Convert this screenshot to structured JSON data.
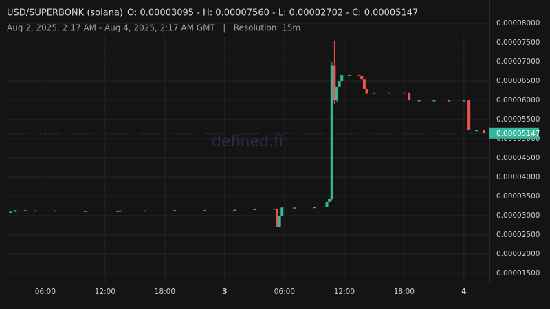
{
  "chart_data": {
    "type": "candlestick",
    "title": "USD/SUPERBONK (solana)",
    "ohlc": "O: 0.00003095 - H: 0.00007560 - L: 0.00002702 - C: 0.00005147",
    "subtitle": "Aug 2, 2025, 2:17 AM - Aug 4, 2025, 2:17 AM GMT   |   Resolution: 15m",
    "watermark": "defined.fi",
    "up_color": "#35b89a",
    "down_color": "#ef5350",
    "grid": true,
    "xlim": [
      "2025-08-02T02:17",
      "2025-08-04T02:17"
    ],
    "xticks": [
      {
        "value": "2025-08-02T06:00",
        "label": "06:00"
      },
      {
        "value": "2025-08-02T12:00",
        "label": "12:00"
      },
      {
        "value": "2025-08-02T18:00",
        "label": "18:00"
      },
      {
        "value": "2025-08-03T00:00",
        "label": "3"
      },
      {
        "value": "2025-08-03T06:00",
        "label": "06:00"
      },
      {
        "value": "2025-08-03T12:00",
        "label": "12:00"
      },
      {
        "value": "2025-08-03T18:00",
        "label": "18:00"
      },
      {
        "value": "2025-08-04T00:00",
        "label": "4"
      }
    ],
    "ylim": [
      1.25e-05,
      8.43e-05
    ],
    "yticks": [
      {
        "value": 1.5e-05,
        "label": "0.00001500"
      },
      {
        "value": 2e-05,
        "label": "0.00002000"
      },
      {
        "value": 2.5e-05,
        "label": "0.00002500"
      },
      {
        "value": 3e-05,
        "label": "0.00003000"
      },
      {
        "value": 3.5e-05,
        "label": "0.00003500"
      },
      {
        "value": 4e-05,
        "label": "0.00004000"
      },
      {
        "value": 4.5e-05,
        "label": "0.00004500"
      },
      {
        "value": 5e-05,
        "label": "0.00005000"
      },
      {
        "value": 5.5e-05,
        "label": "0.00005500"
      },
      {
        "value": 6e-05,
        "label": "0.00006000"
      },
      {
        "value": 6.5e-05,
        "label": "0.00006500"
      },
      {
        "value": 7e-05,
        "label": "0.00007000"
      },
      {
        "value": 7.5e-05,
        "label": "0.00007500"
      },
      {
        "value": 8e-05,
        "label": "0.00008000"
      }
    ],
    "last_price": {
      "value": 5.147e-05,
      "label": "0.00005147"
    },
    "x": [
      "2025-08-02T02:30",
      "2025-08-02T03:00",
      "2025-08-02T04:00",
      "2025-08-02T05:00",
      "2025-08-02T07:00",
      "2025-08-02T10:00",
      "2025-08-02T13:15",
      "2025-08-02T13:30",
      "2025-08-02T16:00",
      "2025-08-02T19:00",
      "2025-08-02T22:00",
      "2025-08-03T01:00",
      "2025-08-03T03:00",
      "2025-08-03T05:00",
      "2025-08-03T05:15",
      "2025-08-03T05:30",
      "2025-08-03T05:45",
      "2025-08-03T07:00",
      "2025-08-03T09:00",
      "2025-08-03T10:15",
      "2025-08-03T10:30",
      "2025-08-03T10:45",
      "2025-08-03T11:00",
      "2025-08-03T11:15",
      "2025-08-03T11:30",
      "2025-08-03T11:45",
      "2025-08-03T12:30",
      "2025-08-03T13:30",
      "2025-08-03T13:45",
      "2025-08-03T14:00",
      "2025-08-03T14:15",
      "2025-08-03T15:00",
      "2025-08-03T16:30",
      "2025-08-03T18:00",
      "2025-08-03T18:30",
      "2025-08-03T19:30",
      "2025-08-03T21:00",
      "2025-08-03T22:30",
      "2025-08-04T00:00",
      "2025-08-04T00:30",
      "2025-08-04T01:15",
      "2025-08-04T02:00"
    ],
    "open": [
      3.095e-05,
      3.1e-05,
      3.14e-05,
      3.13e-05,
      3.13e-05,
      3.12e-05,
      3.12e-05,
      3.1e-05,
      3.13e-05,
      3.13e-05,
      3.14e-05,
      3.15e-05,
      3.16e-05,
      3.17e-05,
      3.18e-05,
      2.71e-05,
      3e-05,
      3.21e-05,
      3.22e-05,
      3.22e-05,
      3.36e-05,
      3.43e-05,
      6.9e-05,
      6e-05,
      6.36e-05,
      6.5e-05,
      6.66e-05,
      6.66e-05,
      6.64e-05,
      6.55e-05,
      6.3e-05,
      6.17e-05,
      6.2e-05,
      6.2e-05,
      6.2e-05,
      6e-05,
      6e-05,
      6e-05,
      6e-05,
      6e-05,
      5.22e-05,
      5.22e-05
    ],
    "high": [
      3.1e-05,
      3.14e-05,
      3.14e-05,
      3.13e-05,
      3.13e-05,
      3.12e-05,
      3.12e-05,
      3.13e-05,
      3.13e-05,
      3.14e-05,
      3.14e-05,
      3.15e-05,
      3.17e-05,
      3.18e-05,
      3.18e-05,
      3e-05,
      3.21e-05,
      3.21e-05,
      3.22e-05,
      3.36e-05,
      3.43e-05,
      7e-05,
      7.56e-05,
      6.36e-05,
      6.5e-05,
      6.66e-05,
      6.66e-05,
      6.66e-05,
      6.64e-05,
      6.55e-05,
      6.3e-05,
      6.2e-05,
      6.2e-05,
      6.2e-05,
      6.2e-05,
      6e-05,
      6e-05,
      6e-05,
      6e-05,
      6e-05,
      5.22e-05,
      5.22e-05
    ],
    "low": [
      3.08e-05,
      3.1e-05,
      3.12e-05,
      3.13e-05,
      3.12e-05,
      3.12e-05,
      3.1e-05,
      3.1e-05,
      3.13e-05,
      3.13e-05,
      3.14e-05,
      3.15e-05,
      3.16e-05,
      3.17e-05,
      2.7e-05,
      2.71e-05,
      3e-05,
      3.21e-05,
      3.22e-05,
      3.22e-05,
      3.36e-05,
      3.4e-05,
      5.9e-05,
      5.95e-05,
      6.36e-05,
      6.5e-05,
      6.66e-05,
      6.64e-05,
      6.55e-05,
      6.3e-05,
      6.17e-05,
      6.17e-05,
      6.2e-05,
      6.2e-05,
      6e-05,
      6e-05,
      6e-05,
      6e-05,
      6e-05,
      5.22e-05,
      5.22e-05,
      5.14e-05
    ],
    "close": [
      3.1e-05,
      3.14e-05,
      3.13e-05,
      3.13e-05,
      3.12e-05,
      3.12e-05,
      3.1e-05,
      3.13e-05,
      3.13e-05,
      3.14e-05,
      3.14e-05,
      3.15e-05,
      3.17e-05,
      3.18e-05,
      2.71e-05,
      3e-05,
      3.21e-05,
      3.21e-05,
      3.22e-05,
      3.36e-05,
      3.43e-05,
      6.9e-05,
      6e-05,
      6.36e-05,
      6.5e-05,
      6.66e-05,
      6.66e-05,
      6.64e-05,
      6.55e-05,
      6.3e-05,
      6.17e-05,
      6.2e-05,
      6.2e-05,
      6.2e-05,
      6e-05,
      6e-05,
      6e-05,
      6e-05,
      6e-05,
      5.22e-05,
      5.22e-05,
      5.147e-05
    ]
  }
}
